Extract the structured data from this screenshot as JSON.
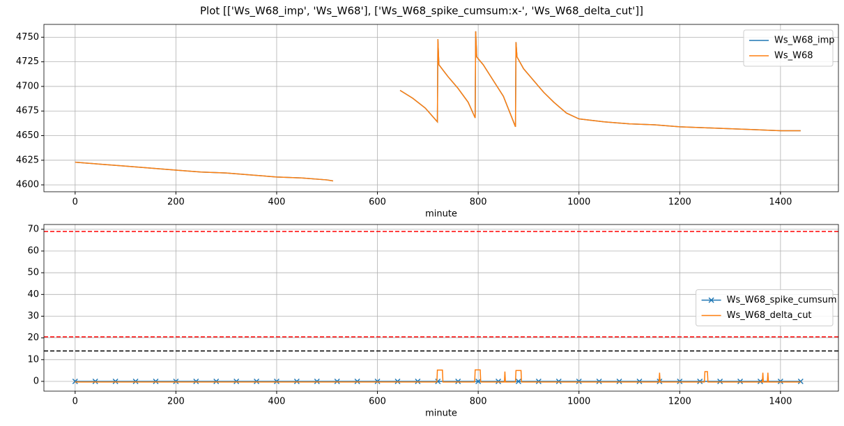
{
  "title": "Plot [['Ws_W68_imp', 'Ws_W68'], ['Ws_W68_spike_cumsum:x-', 'Ws_W68_delta_cut']]",
  "chart_data": [
    {
      "type": "line",
      "x_label": "minute",
      "x": [
        0,
        50,
        100,
        150,
        200,
        250,
        300,
        350,
        400,
        450,
        500,
        512,
        580,
        645,
        670,
        695,
        719,
        720,
        722,
        740,
        760,
        780,
        794,
        795,
        797,
        810,
        830,
        850,
        874,
        875,
        877,
        890,
        910,
        930,
        950,
        975,
        1000,
        1050,
        1100,
        1150,
        1200,
        1250,
        1300,
        1350,
        1400,
        1440
      ],
      "series": [
        {
          "name": "Ws_W68_imp",
          "color": "#1f77b4",
          "values": [
            4623,
            4621,
            4619,
            4617,
            4615,
            4613,
            4612,
            4610,
            4608,
            4607,
            4605,
            4604,
            null,
            4696,
            4688,
            4678,
            4664,
            4748,
            4722,
            4710,
            4698,
            4684,
            4668,
            4756,
            4730,
            4722,
            4706,
            4690,
            4659,
            4745,
            4730,
            4718,
            4706,
            4694,
            4684,
            4673,
            4667,
            4664,
            4662,
            4661,
            4659,
            4658,
            4657,
            4656,
            4655,
            4655
          ]
        },
        {
          "name": "Ws_W68",
          "color": "#ff7f0e",
          "values": [
            4623,
            4621,
            4619,
            4617,
            4615,
            4613,
            4612,
            4610,
            4608,
            4607,
            4605,
            4604,
            null,
            4696,
            4688,
            4678,
            4664,
            4748,
            4722,
            4710,
            4698,
            4684,
            4668,
            4756,
            4730,
            4722,
            4706,
            4690,
            4659,
            4745,
            4730,
            4718,
            4706,
            4694,
            4684,
            4673,
            4667,
            4664,
            4662,
            4661,
            4659,
            4658,
            4657,
            4656,
            4655,
            4655
          ]
        }
      ],
      "xlim": [
        -62,
        1515
      ],
      "xticks": [
        0,
        200,
        400,
        600,
        800,
        1000,
        1200,
        1400
      ],
      "ylim": [
        4593,
        4763
      ],
      "yticks": [
        4600,
        4625,
        4650,
        4675,
        4700,
        4725,
        4750
      ],
      "grid": true,
      "legend": "upper right"
    },
    {
      "type": "line",
      "x_label": "minute",
      "series": [
        {
          "name": "Ws_W68_spike_cumsum",
          "color": "#1f77b4",
          "marker": "x",
          "x": [
            0,
            40,
            80,
            120,
            160,
            200,
            240,
            280,
            320,
            360,
            400,
            440,
            480,
            520,
            560,
            600,
            640,
            680,
            720,
            760,
            800,
            840,
            880,
            920,
            960,
            1000,
            1040,
            1080,
            1120,
            1160,
            1200,
            1240,
            1280,
            1320,
            1360,
            1400,
            1440
          ],
          "values": [
            0,
            0,
            0,
            0,
            0,
            0,
            0,
            0,
            0,
            0,
            0,
            0,
            0,
            0,
            0,
            0,
            0,
            0,
            0,
            0,
            0,
            0,
            0,
            0,
            0,
            0,
            0,
            0,
            0,
            0,
            0,
            0,
            0,
            0,
            0,
            0,
            0
          ]
        },
        {
          "name": "Ws_W68_delta_cut",
          "color": "#ff7f0e",
          "x": [
            0,
            718,
            719,
            729,
            730,
            793,
            794,
            804,
            805,
            852,
            853,
            854,
            874,
            875,
            885,
            886,
            1159,
            1160,
            1161,
            1249,
            1250,
            1255,
            1256,
            1364,
            1365,
            1366,
            1374,
            1375,
            1376,
            1440
          ],
          "values": [
            -0.3,
            -0.3,
            5.2,
            5.2,
            -0.3,
            -0.3,
            5.3,
            5.3,
            -0.3,
            -0.3,
            4.5,
            -0.3,
            -0.3,
            5,
            5,
            -0.3,
            -0.3,
            4,
            -0.3,
            -0.3,
            4.5,
            4.5,
            -0.3,
            -0.3,
            4,
            -0.3,
            -0.3,
            4,
            -0.3,
            -0.3
          ]
        }
      ],
      "hlines": [
        {
          "value": 69,
          "color": "#ff0000"
        },
        {
          "value": 20.5,
          "color": "#ff0000"
        },
        {
          "value": 14,
          "color": "#000000"
        }
      ],
      "xlim": [
        -62,
        1515
      ],
      "xticks": [
        0,
        200,
        400,
        600,
        800,
        1000,
        1200,
        1400
      ],
      "ylim": [
        -4.5,
        72.2
      ],
      "yticks": [
        0,
        10,
        20,
        30,
        40,
        50,
        60,
        70
      ],
      "grid": true,
      "legend": "center right"
    }
  ]
}
